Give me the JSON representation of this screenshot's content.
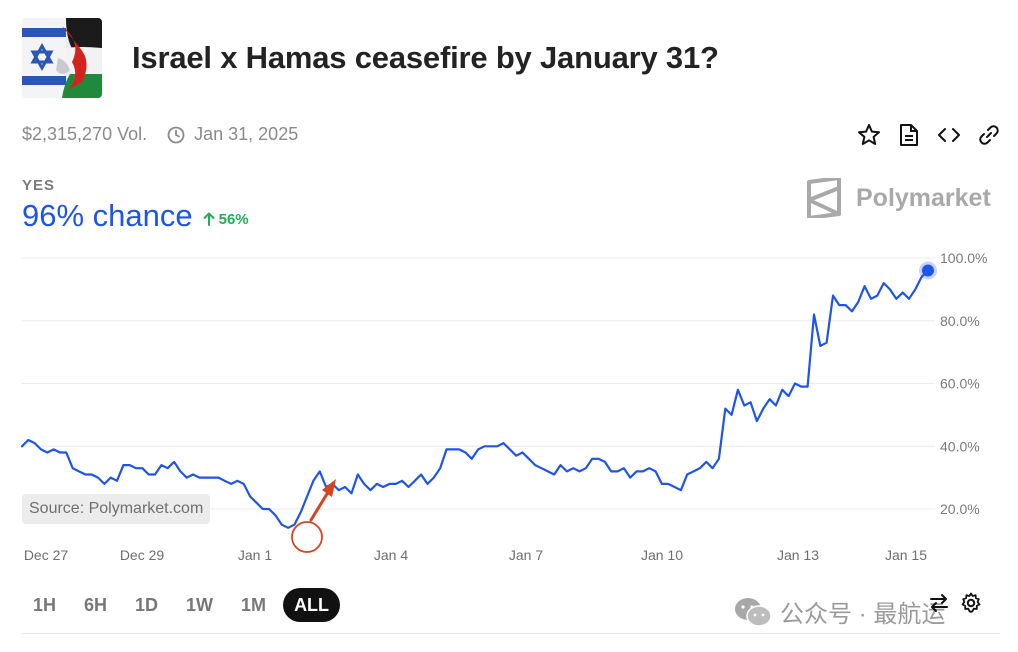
{
  "header": {
    "title": "Israel x Hamas ceasefire by January 31?",
    "thumbnail_icon": "israel-palestine-flags-image"
  },
  "meta": {
    "volume": "$2,315,270 Vol.",
    "end_date": "Jan 31, 2025"
  },
  "actions": [
    "star-icon",
    "document-icon",
    "embed-code-icon",
    "link-icon"
  ],
  "outcome": {
    "label": "YES",
    "chance": "96% chance",
    "change": "56%",
    "change_color": "#1db055"
  },
  "brand": {
    "name": "Polymarket"
  },
  "source_label": "Source: Polymarket.com",
  "ranges": [
    "1H",
    "6H",
    "1D",
    "1W",
    "1M",
    "ALL"
  ],
  "active_range": "ALL",
  "watermark": "公众号 · 最航运",
  "colors": {
    "line": "#1f55e6",
    "annotation": "#d9421e"
  },
  "chart_data": {
    "type": "line",
    "x_ticks": [
      "Dec 27",
      "Dec 29",
      "Jan 1",
      "Jan 4",
      "Jan 7",
      "Jan 10",
      "Jan 13",
      "Jan 15"
    ],
    "y_ticks": [
      "20.0%",
      "40.0%",
      "60.0%",
      "80.0%",
      "100.0%"
    ],
    "ylim": [
      20,
      100
    ],
    "grid": true,
    "series": [
      {
        "values": [
          40,
          42,
          41,
          39,
          38,
          39,
          38,
          38,
          33,
          32,
          31,
          31,
          30,
          28,
          30,
          29,
          34,
          34,
          33,
          33,
          31,
          31,
          34,
          33,
          35,
          32,
          30,
          31,
          30,
          30,
          30,
          30,
          29,
          28,
          29,
          28,
          24,
          22,
          20,
          20,
          18,
          15,
          14,
          15,
          19,
          24,
          29,
          32,
          27,
          28,
          26,
          27,
          25,
          31,
          28,
          26,
          28,
          27,
          28,
          28,
          29,
          27,
          29,
          31,
          28,
          30,
          33,
          39,
          39,
          39,
          38,
          36,
          39,
          40,
          40,
          40,
          41,
          39,
          37,
          38,
          36,
          34,
          33,
          32,
          31,
          34,
          32,
          33,
          32,
          33,
          36,
          36,
          35,
          32,
          32,
          33,
          30,
          32,
          32,
          33,
          32,
          28,
          28,
          27,
          26,
          31,
          32,
          33,
          35,
          33,
          36,
          52,
          50,
          58,
          53,
          54,
          48,
          52,
          55,
          53,
          58,
          56,
          60,
          59,
          59,
          82,
          72,
          73,
          88,
          85,
          85,
          83,
          86,
          91,
          87,
          88,
          92,
          90,
          87,
          89,
          87,
          90,
          94,
          96
        ]
      }
    ]
  }
}
